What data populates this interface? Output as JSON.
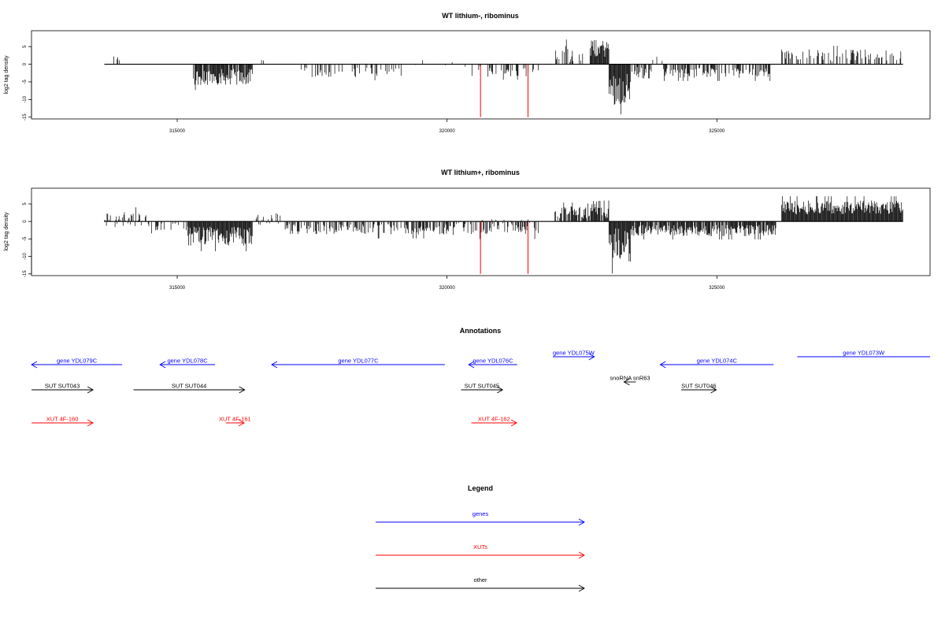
{
  "colors": {
    "gene": "#0000ff",
    "xut": "#ff0000",
    "other": "#000000",
    "axis": "#000000"
  },
  "chart_data": [
    {
      "type": "bar",
      "title": "WT lithium-, ribominus",
      "ylabel": "log2 tag density",
      "xlim": [
        312300,
        328950
      ],
      "ylim": [
        -15.5,
        9.5
      ],
      "xticks": [
        315000,
        320000,
        325000
      ],
      "xtick_labels": [
        "315000",
        "320000",
        "325000"
      ],
      "yticks": [
        5,
        0,
        -5,
        -10,
        -15
      ],
      "ytick_labels": [
        "5",
        "0",
        "-5",
        "-10",
        "-15"
      ],
      "track_start": 313650,
      "track_end": 328450,
      "highlight_bars": [
        {
          "x": 320620,
          "y": -15
        },
        {
          "x": 321500,
          "y": -15
        }
      ],
      "segments": [
        {
          "start": 313750,
          "end": 314000,
          "mean": 1.2,
          "amp": 1.3,
          "dens": 0.25
        },
        {
          "start": 314000,
          "end": 314300,
          "mean": -1.5,
          "amp": 1.0,
          "dens": 0.05
        },
        {
          "start": 315300,
          "end": 316400,
          "mean": -3.6,
          "amp": 2.3,
          "dens": 0.9
        },
        {
          "start": 316500,
          "end": 316600,
          "mean": 2.0,
          "amp": 1.2,
          "dens": 0.25
        },
        {
          "start": 316700,
          "end": 316800,
          "mean": 1.5,
          "amp": 1.0,
          "dens": 0.25
        },
        {
          "start": 317300,
          "end": 319300,
          "mean": -2.3,
          "amp": 1.4,
          "dens": 0.22
        },
        {
          "start": 319300,
          "end": 320200,
          "mean": 0.2,
          "amp": 1.0,
          "dens": 0.08
        },
        {
          "start": 320300,
          "end": 321700,
          "mean": -2.0,
          "amp": 1.5,
          "dens": 0.22
        },
        {
          "start": 322000,
          "end": 322350,
          "mean": 3.0,
          "amp": 2.5,
          "dens": 0.5
        },
        {
          "start": 322450,
          "end": 322600,
          "mean": 2.0,
          "amp": 1.0,
          "dens": 0.3
        },
        {
          "start": 322650,
          "end": 323000,
          "mean": 4.5,
          "amp": 2.5,
          "dens": 1.0
        },
        {
          "start": 323000,
          "end": 323400,
          "mean": -7.0,
          "amp": 4.5,
          "dens": 1.0
        },
        {
          "start": 323400,
          "end": 323800,
          "mean": -2.5,
          "amp": 1.8,
          "dens": 0.55
        },
        {
          "start": 323800,
          "end": 324000,
          "mean": 2.0,
          "amp": 1.5,
          "dens": 0.15
        },
        {
          "start": 324000,
          "end": 326000,
          "mean": -2.5,
          "amp": 1.4,
          "dens": 0.55
        },
        {
          "start": 326200,
          "end": 328450,
          "mean": 2.5,
          "amp": 1.7,
          "dens": 0.35
        }
      ]
    },
    {
      "type": "bar",
      "title": "WT lithium+, ribominus",
      "ylabel": "log2 tag density",
      "xlim": [
        312300,
        328950
      ],
      "ylim": [
        -15.5,
        9.5
      ],
      "xticks": [
        315000,
        320000,
        325000
      ],
      "xtick_labels": [
        "315000",
        "320000",
        "325000"
      ],
      "yticks": [
        5,
        0,
        -5,
        -10,
        -15
      ],
      "ytick_labels": [
        "5",
        "0",
        "-5",
        "-10",
        "-15"
      ],
      "track_start": 313650,
      "track_end": 328450,
      "highlight_bars": [
        {
          "x": 320620,
          "y": -15
        },
        {
          "x": 321500,
          "y": -15
        }
      ],
      "segments": [
        {
          "start": 313650,
          "end": 314450,
          "mean": 0.5,
          "amp": 2.2,
          "dens": 0.5
        },
        {
          "start": 314450,
          "end": 315200,
          "mean": -1.5,
          "amp": 1.2,
          "dens": 0.3
        },
        {
          "start": 315200,
          "end": 316400,
          "mean": -4.2,
          "amp": 2.7,
          "dens": 1.0
        },
        {
          "start": 316400,
          "end": 317000,
          "mean": 0.5,
          "amp": 2.0,
          "dens": 0.4
        },
        {
          "start": 317000,
          "end": 320200,
          "mean": -2.3,
          "amp": 1.6,
          "dens": 0.55
        },
        {
          "start": 320200,
          "end": 321700,
          "mean": -1.5,
          "amp": 2.2,
          "dens": 0.5
        },
        {
          "start": 322000,
          "end": 322600,
          "mean": 2.5,
          "amp": 1.8,
          "dens": 0.7
        },
        {
          "start": 322600,
          "end": 323000,
          "mean": 3.5,
          "amp": 2.5,
          "dens": 0.9
        },
        {
          "start": 323000,
          "end": 323400,
          "mean": -7.0,
          "amp": 5.0,
          "dens": 1.0
        },
        {
          "start": 323400,
          "end": 326100,
          "mean": -2.6,
          "amp": 1.6,
          "dens": 0.85
        },
        {
          "start": 326200,
          "end": 328450,
          "mean": 4.0,
          "amp": 2.0,
          "dens": 1.0
        }
      ]
    }
  ],
  "annotations": {
    "title": "Annotations",
    "features": [
      {
        "label": "gene YDL079C",
        "type": "gene",
        "start": 312300,
        "end": 313980,
        "strand": "-"
      },
      {
        "label": "gene YDL078C",
        "type": "gene",
        "start": 314680,
        "end": 315700,
        "strand": "-"
      },
      {
        "label": "gene YDL077C",
        "type": "gene",
        "start": 316750,
        "end": 319960,
        "strand": "-"
      },
      {
        "label": "gene YDL076C",
        "type": "gene",
        "start": 320400,
        "end": 321300,
        "strand": "-"
      },
      {
        "label": "gene YDL075W",
        "type": "gene",
        "start": 321960,
        "end": 322730,
        "strand": "+"
      },
      {
        "label": "gene YDL074C",
        "type": "gene",
        "start": 323950,
        "end": 326050,
        "strand": "-"
      },
      {
        "label": "gene YDL073W",
        "type": "gene",
        "start": 326490,
        "end": 328950,
        "strand": "none"
      },
      {
        "label": "snoRNA snR63",
        "type": "other",
        "start": 323280,
        "end": 323500,
        "strand": "-"
      },
      {
        "label": "SUT SUT043",
        "type": "other",
        "start": 312300,
        "end": 313440,
        "strand": "+"
      },
      {
        "label": "SUT SUT044",
        "type": "other",
        "start": 314190,
        "end": 316250,
        "strand": "+"
      },
      {
        "label": "SUT SUT045",
        "type": "other",
        "start": 320260,
        "end": 321030,
        "strand": "+"
      },
      {
        "label": "SUT SUT046",
        "type": "other",
        "start": 324340,
        "end": 324990,
        "strand": "+"
      },
      {
        "label": "XUT 4F-160",
        "type": "xut",
        "start": 312300,
        "end": 313440,
        "strand": "+"
      },
      {
        "label": "XUT 4F-161",
        "type": "xut",
        "start": 315900,
        "end": 316240,
        "strand": "+"
      },
      {
        "label": "XUT 4F-162",
        "type": "xut",
        "start": 320450,
        "end": 321290,
        "strand": "+"
      }
    ]
  },
  "legend": {
    "title": "Legend",
    "items": [
      {
        "label": "genes",
        "type": "gene"
      },
      {
        "label": "XUTs",
        "type": "xut"
      },
      {
        "label": "other",
        "type": "other"
      }
    ]
  }
}
